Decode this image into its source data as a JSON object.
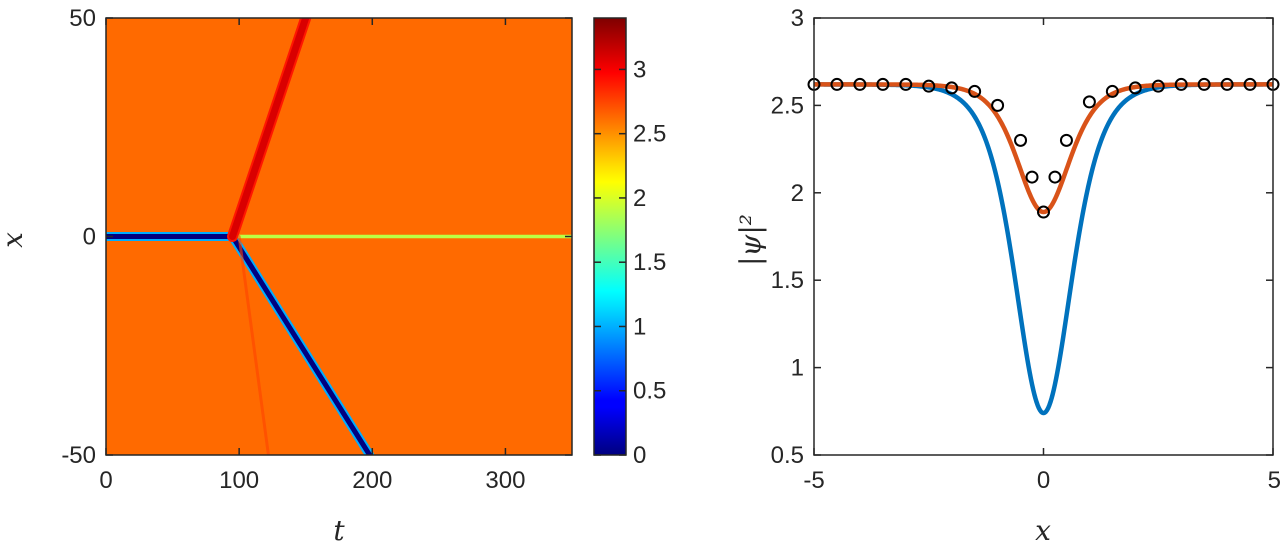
{
  "chart_data": [
    {
      "type": "heatmap",
      "xlabel": "t",
      "ylabel": "x",
      "xlim": [
        0,
        350
      ],
      "ylim": [
        -50,
        50
      ],
      "x_ticks": [
        "0",
        "100",
        "200",
        "300"
      ],
      "y_ticks": [
        "-50",
        "0",
        "50"
      ],
      "colormap": "jet",
      "background_value": 2.62,
      "colorbar": {
        "range": [
          0,
          3.4
        ],
        "ticks": [
          "0",
          "0.5",
          "1",
          "1.5",
          "2",
          "2.5",
          "3"
        ]
      },
      "features": [
        {
          "name": "dark soliton (stationary)",
          "t": [
            0,
            95
          ],
          "x": [
            0,
            0
          ],
          "value": 0.0
        },
        {
          "name": "dark soliton (moving)",
          "t": [
            95,
            198
          ],
          "x": [
            0,
            -50
          ],
          "value": 0.0
        },
        {
          "name": "gray soliton (stationary)",
          "t": [
            95,
            350
          ],
          "x": [
            0,
            0
          ],
          "value": 1.9
        },
        {
          "name": "bright wave",
          "t": [
            95,
            150
          ],
          "x": [
            0,
            50
          ],
          "value": 3.1
        },
        {
          "name": "faint radiation",
          "t": [
            100,
            122
          ],
          "x": [
            0,
            -50
          ],
          "value": 2.75
        }
      ]
    },
    {
      "type": "line",
      "xlabel": "x",
      "ylabel": "|ψ|²",
      "xlim": [
        -5,
        5
      ],
      "ylim": [
        0.5,
        3
      ],
      "x_ticks": [
        "-5",
        "0",
        "5"
      ],
      "y_ticks": [
        "0.5",
        "1",
        "1.5",
        "2",
        "2.5",
        "3"
      ],
      "series": [
        {
          "color": "#0072BD",
          "style": "line",
          "form": "sech2",
          "background": 2.62,
          "min": 0.74,
          "width": 0.82
        },
        {
          "color": "#D95319",
          "style": "line",
          "form": "sech2",
          "background": 2.62,
          "min": 1.89,
          "width": 0.76
        },
        {
          "color": "#000000",
          "style": "circles",
          "x": [
            -5,
            -4.5,
            -4,
            -3.5,
            -3,
            -2.5,
            -2,
            -1.5,
            -1,
            -0.5,
            -0.25,
            0,
            0.25,
            0.5,
            1,
            1.5,
            2,
            2.5,
            3,
            3.5,
            4,
            4.5,
            5
          ],
          "y": [
            2.62,
            2.62,
            2.62,
            2.62,
            2.62,
            2.61,
            2.6,
            2.58,
            2.5,
            2.3,
            2.09,
            1.89,
            2.09,
            2.3,
            2.52,
            2.58,
            2.6,
            2.61,
            2.62,
            2.62,
            2.62,
            2.62,
            2.62
          ]
        }
      ]
    }
  ]
}
